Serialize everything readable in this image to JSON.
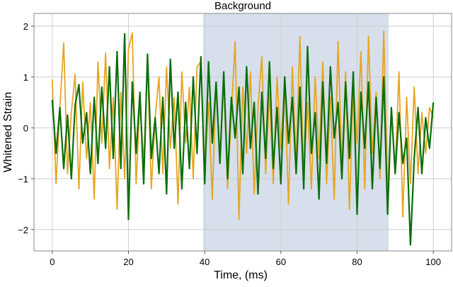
{
  "chart_data": {
    "type": "line",
    "title": "Background",
    "xlabel": "Time, (ms)",
    "ylabel": "Whitened Strain",
    "xlim": [
      -4.8,
      104.8
    ],
    "ylim": [
      -2.42,
      2.25
    ],
    "x_start": 0,
    "x_end": 100,
    "xticks": [
      0,
      20,
      40,
      60,
      80,
      100
    ],
    "xtick_labels": [
      "0",
      "20",
      "40",
      "60",
      "80",
      "100"
    ],
    "yticks": [
      2,
      1,
      0,
      -1,
      -2
    ],
    "ytick_labels": [
      "2",
      "1",
      "0",
      "−1",
      "−2"
    ],
    "grid": true,
    "shaded_region": {
      "x": [
        39.6,
        88.3
      ],
      "color": "#d6dfeb"
    },
    "series": [
      {
        "color": "#e6a521",
        "values": [
          0.95,
          -1.1,
          0.4,
          1.67,
          -0.9,
          0.3,
          1.05,
          -1.2,
          0.9,
          -0.6,
          0.5,
          -1.4,
          1.3,
          -0.3,
          1.47,
          -0.8,
          0.6,
          -1.6,
          0.7,
          -1.0,
          1.55,
          1.87,
          -1.1,
          0.5,
          -0.7,
          1.3,
          -1.2,
          0.2,
          1.0,
          -0.9,
          1.2,
          -0.4,
          0.6,
          -1.5,
          1.1,
          -0.3,
          0.8,
          -1.0,
          1.2,
          1.3,
          -0.8,
          0.5,
          -1.4,
          0.9,
          -0.6,
          1.0,
          -1.2,
          0.3,
          1.7,
          -1.8,
          0.8,
          -0.5,
          1.1,
          -1.3,
          0.4,
          1.4,
          -0.9,
          0.7,
          -1.1,
          1.0,
          -0.4,
          0.9,
          -1.5,
          1.2,
          -0.7,
          1.8,
          -1.0,
          0.5,
          -1.2,
          1.0,
          -0.6,
          1.3,
          -1.1,
          0.6,
          -1.4,
          1.7,
          -0.8,
          1.1,
          -1.6,
          0.9,
          -0.3,
          1.5,
          -1.2,
          1.8,
          -0.5,
          0.7,
          -1.0,
          1.9,
          -1.3,
          0.4,
          -0.8,
          1.1,
          -1.75,
          0.6,
          -1.1,
          0.8,
          -0.9,
          0.3,
          -0.5,
          0.4,
          0.2
        ]
      },
      {
        "color": "#0b6e0b",
        "values": [
          0.55,
          -0.5,
          0.4,
          -0.8,
          0.25,
          -1.0,
          0.45,
          0.85,
          -0.3,
          0.3,
          -0.9,
          0.6,
          -0.7,
          0.8,
          -0.4,
          1.2,
          -0.6,
          1.5,
          -0.8,
          1.85,
          -1.8,
          0.9,
          -0.5,
          0.7,
          -1.1,
          1.45,
          -0.6,
          0.2,
          -0.9,
          0.6,
          -1.3,
          1.35,
          -0.4,
          0.7,
          -1.2,
          0.5,
          -0.8,
          1.0,
          -0.5,
          1.4,
          -1.1,
          1.3,
          -0.3,
          0.9,
          -0.7,
          1.1,
          -1.0,
          0.6,
          -0.2,
          0.8,
          -0.9,
          1.2,
          -0.4,
          0.5,
          -1.3,
          0.7,
          -0.6,
          1.3,
          -0.8,
          0.4,
          -1.1,
          1.0,
          -0.3,
          0.6,
          -0.9,
          0.8,
          -1.2,
          1.6,
          -0.5,
          0.3,
          -1.4,
          0.9,
          -0.7,
          1.2,
          -0.2,
          0.5,
          -1.0,
          0.9,
          -0.6,
          1.1,
          -1.7,
          0.7,
          -0.4,
          0.9,
          -1.2,
          0.6,
          -0.8,
          1.0,
          -1.7,
          0.4,
          -0.9,
          0.3,
          -0.7,
          -0.2,
          -2.3,
          -0.6,
          0.4,
          -0.9,
          0.2,
          -0.4,
          0.5
        ]
      }
    ]
  }
}
